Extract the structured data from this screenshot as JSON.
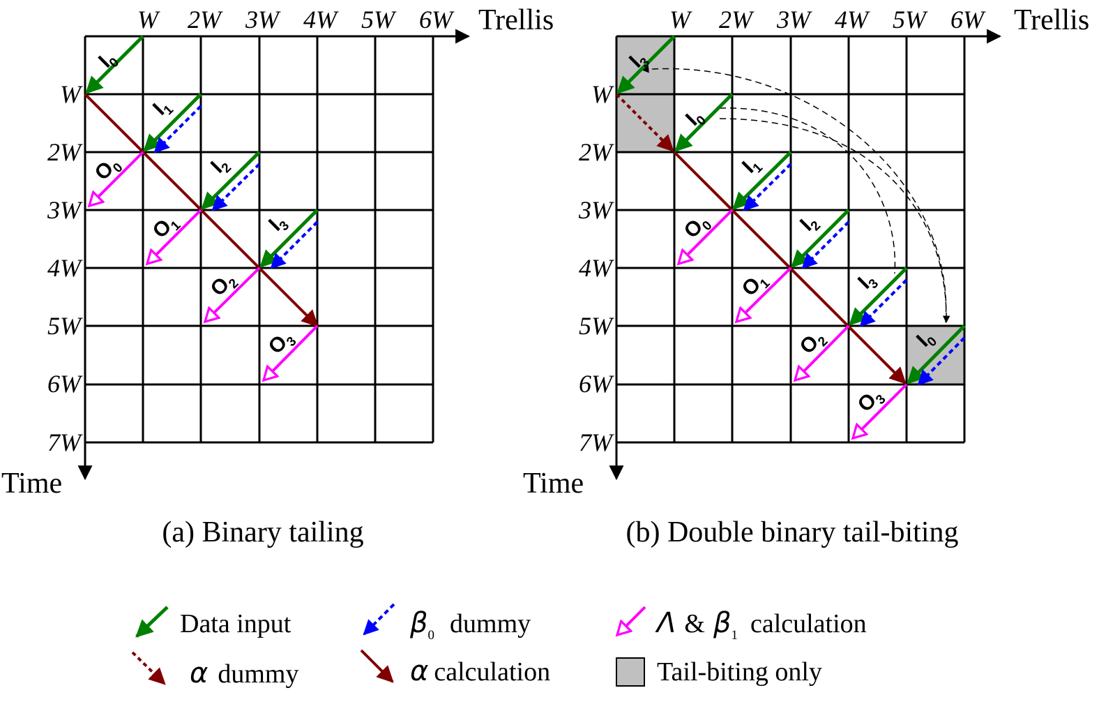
{
  "panels": [
    {
      "id": "a",
      "caption": "(a) Binary tailing",
      "x_axis_title": "Trellis",
      "y_axis_title": "Time",
      "x_ticks": [
        "W",
        "2W",
        "3W",
        "4W",
        "5W",
        "6W"
      ],
      "y_ticks": [
        "W",
        "2W",
        "3W",
        "4W",
        "5W",
        "6W",
        "7W"
      ],
      "shaded_cells": [],
      "input_labels": [
        {
          "letter": "I",
          "sub": "0"
        },
        {
          "letter": "I",
          "sub": "1"
        },
        {
          "letter": "I",
          "sub": "2"
        },
        {
          "letter": "I",
          "sub": "3"
        }
      ],
      "output_labels": [
        {
          "letter": "O",
          "sub": "0"
        },
        {
          "letter": "O",
          "sub": "1"
        },
        {
          "letter": "O",
          "sub": "2"
        },
        {
          "letter": "O",
          "sub": "3"
        }
      ]
    },
    {
      "id": "b",
      "caption": "(b) Double binary tail-biting",
      "x_axis_title": "Trellis",
      "y_axis_title": "Time",
      "x_ticks": [
        "W",
        "2W",
        "3W",
        "4W",
        "5W",
        "6W"
      ],
      "y_ticks": [
        "W",
        "2W",
        "3W",
        "4W",
        "5W",
        "6W",
        "7W"
      ],
      "shaded_cells": [
        [
          0,
          0
        ],
        [
          0,
          1
        ],
        [
          5,
          5
        ]
      ],
      "input_labels": [
        {
          "letter": "I",
          "sub": "3"
        },
        {
          "letter": "I",
          "sub": "0"
        },
        {
          "letter": "I",
          "sub": "1"
        },
        {
          "letter": "I",
          "sub": "2"
        },
        {
          "letter": "I",
          "sub": "3"
        },
        {
          "letter": "I",
          "sub": "0"
        }
      ],
      "output_labels": [
        {
          "letter": "O",
          "sub": "0"
        },
        {
          "letter": "O",
          "sub": "1"
        },
        {
          "letter": "O",
          "sub": "2"
        },
        {
          "letter": "O",
          "sub": "3"
        }
      ]
    }
  ],
  "legend": [
    {
      "key": "data_input",
      "text": "Data input",
      "color": "#008000",
      "symbol": "green-solid-arrow"
    },
    {
      "key": "beta0_dummy",
      "greek": "β",
      "greek_sub": "0",
      "text": "dummy",
      "color": "#0000ff",
      "symbol": "blue-dashed-arrow"
    },
    {
      "key": "lambda_beta1",
      "greek": "Λ",
      "mid": "&",
      "greek2": "β",
      "greek2_sub": "1",
      "text": "calculation",
      "color": "#ff00ff",
      "symbol": "magenta-hollow-arrow"
    },
    {
      "key": "alpha_dummy",
      "greek": "α",
      "text": "dummy",
      "color": "#800000",
      "symbol": "maroon-dotted-arrow"
    },
    {
      "key": "alpha_calc",
      "greek": "α",
      "text": "calculation",
      "color": "#800000",
      "symbol": "maroon-solid-arrow"
    },
    {
      "key": "tailbiting",
      "text": "Tail-biting only",
      "color": "#c0c0c0",
      "symbol": "gray-box"
    }
  ],
  "colors": {
    "green": "#008000",
    "blue": "#0000ff",
    "magenta": "#ff00ff",
    "maroon": "#800000",
    "shade": "#c0c0c0",
    "grid": "#000000"
  }
}
